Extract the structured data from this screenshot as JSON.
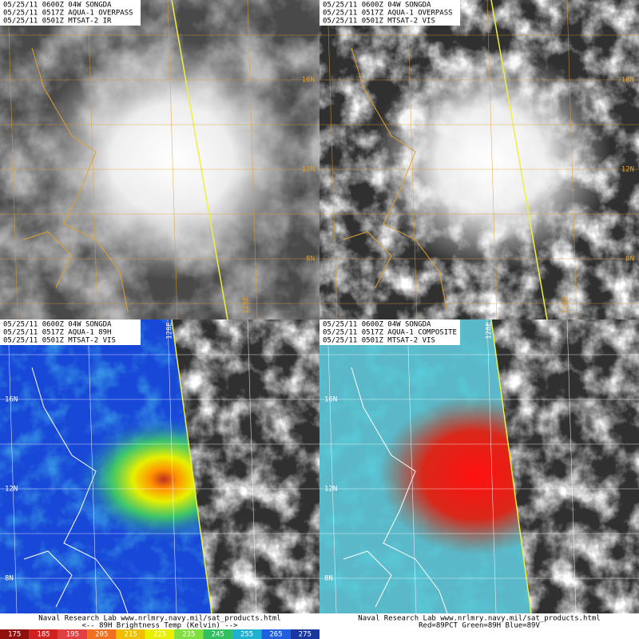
{
  "panels": [
    {
      "header": [
        "05/25/11 0600Z 04W SONGDA",
        "05/25/11 0517Z AQUA-1 OVERPASS",
        "05/25/11 0501Z MTSAT-2 IR"
      ],
      "grid_labels": [
        "16N",
        "12N",
        "8N",
        "128E"
      ]
    },
    {
      "header": [
        "05/25/11 0600Z 04W SONGDA",
        "05/25/11 0517Z AQUA-1 OVERPASS",
        "05/25/11 0501Z MTSAT-2 VIS"
      ],
      "grid_labels": [
        "16N",
        "12N",
        "8N",
        "128E"
      ]
    },
    {
      "header": [
        "05/25/11 0600Z 04W SONGDA",
        "05/25/11 0517Z AQUA-1 89H",
        "05/25/11 0501Z MTSAT-2 VIS"
      ],
      "grid_labels": [
        "16N",
        "12N",
        "8N",
        "128E"
      ],
      "footer": [
        "Naval Research Lab  www.nrlmry.navy.mil/sat_products.html",
        "<--   89H Brightness Temp (Kelvin)   -->"
      ],
      "colorbar": [
        175,
        185,
        195,
        205,
        215,
        225,
        235,
        245,
        255,
        265,
        275
      ]
    },
    {
      "header": [
        "05/25/11 0600Z 04W SONGDA",
        "05/25/11 0517Z AQUA-1 COMPOSITE",
        "05/25/11 0501Z MTSAT-2 VIS"
      ],
      "grid_labels": [
        "16N",
        "12N",
        "8N",
        "128E"
      ],
      "footer": [
        "Naval Research Lab  www.nrlmry.navy.mil/sat_products.html",
        "Red=89PCT  Green=89H  Blue=89V"
      ]
    }
  ]
}
